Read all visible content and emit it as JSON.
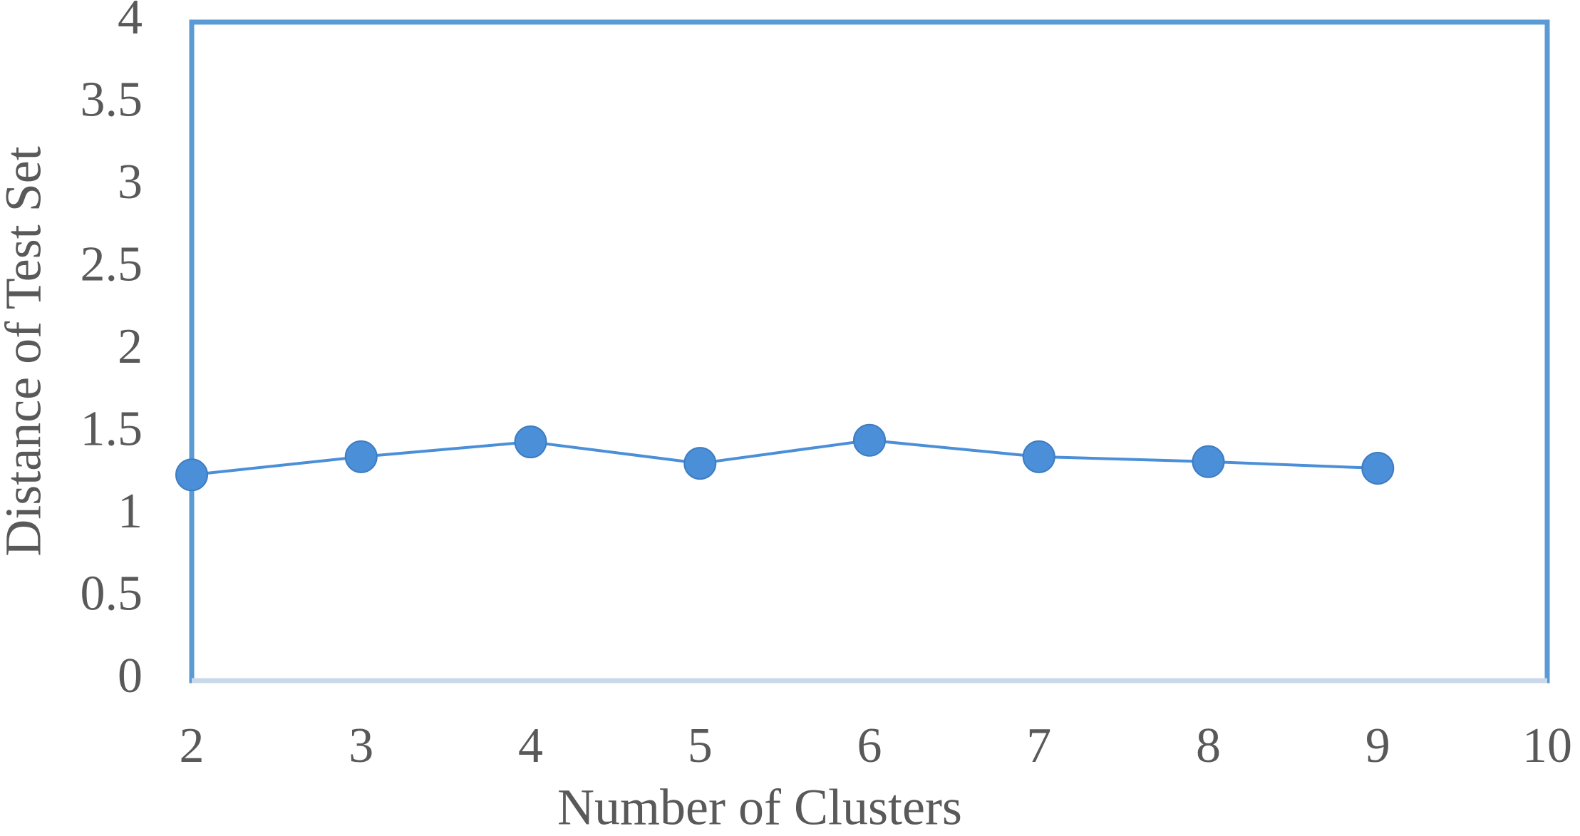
{
  "chart_data": {
    "type": "line",
    "x_label": "Number of Clusters",
    "y_label": "Distance of Test Set",
    "x": [
      2,
      3,
      4,
      5,
      6,
      7,
      8,
      9
    ],
    "values": [
      1.25,
      1.36,
      1.45,
      1.32,
      1.46,
      1.36,
      1.33,
      1.29
    ],
    "color": "#4a8fd8",
    "xlim": [
      2,
      10
    ],
    "xticks": [
      2,
      3,
      4,
      5,
      6,
      7,
      8,
      9,
      10
    ],
    "ylim": [
      0,
      4
    ],
    "yticks": [
      0,
      0.5,
      1,
      1.5,
      2,
      2.5,
      3,
      3.5,
      4
    ],
    "grid": false
  }
}
